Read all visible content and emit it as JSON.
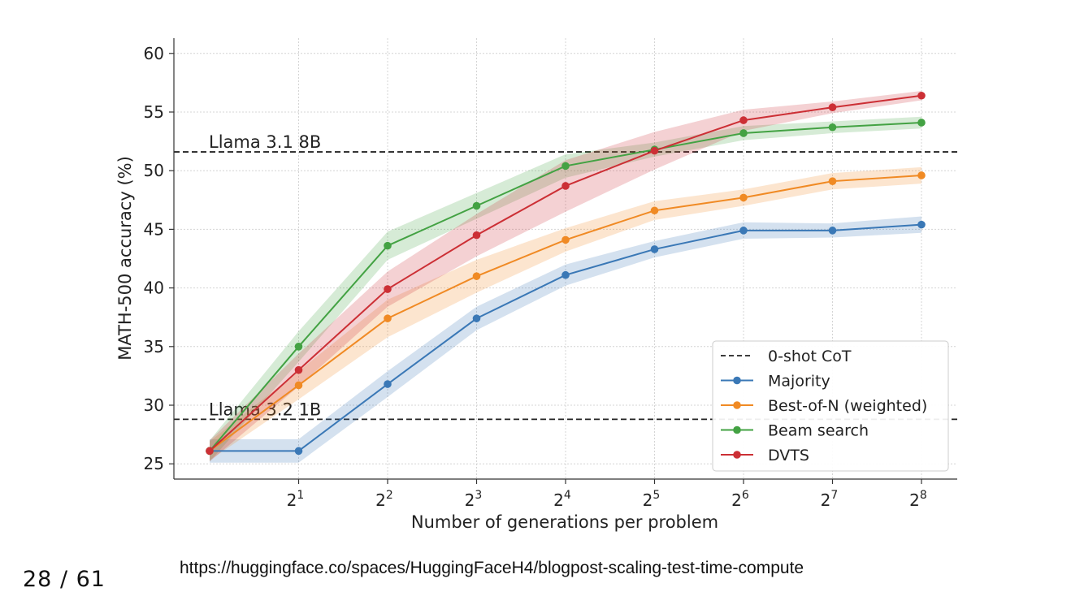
{
  "slide": {
    "page_number": "28 / 61",
    "source_url": "https://huggingface.co/spaces/HuggingFaceH4/blogpost-scaling-test-time-compute"
  },
  "chart_data": {
    "type": "line",
    "title": "",
    "xlabel": "Number of generations per problem",
    "ylabel": "MATH-500 accuracy (%)",
    "x": [
      1,
      2,
      4,
      8,
      16,
      32,
      64,
      128,
      256
    ],
    "x_scale": "log2",
    "x_ticks": [
      2,
      4,
      8,
      16,
      32,
      64,
      128,
      256
    ],
    "x_tick_labels": [
      {
        "base": "2",
        "exp": "1"
      },
      {
        "base": "2",
        "exp": "2"
      },
      {
        "base": "2",
        "exp": "3"
      },
      {
        "base": "2",
        "exp": "4"
      },
      {
        "base": "2",
        "exp": "5"
      },
      {
        "base": "2",
        "exp": "6"
      },
      {
        "base": "2",
        "exp": "7"
      },
      {
        "base": "2",
        "exp": "8"
      }
    ],
    "y_ticks": [
      25,
      30,
      35,
      40,
      45,
      50,
      55,
      60
    ],
    "ylim": [
      23.7,
      61.3
    ],
    "grid": true,
    "legend_position": "bottom-right",
    "reference_lines": [
      {
        "name": "0-shot CoT",
        "label": "Llama 3.1 8B",
        "y": 51.6,
        "color": "#222222"
      },
      {
        "name": "0-shot CoT",
        "label": "Llama 3.2 1B",
        "y": 28.8,
        "color": "#222222"
      }
    ],
    "series": [
      {
        "name": "Majority",
        "color": "#3a78b6",
        "values": [
          26.1,
          26.1,
          31.8,
          37.4,
          41.1,
          43.3,
          44.9,
          44.9,
          45.4
        ],
        "band": [
          1.0,
          1.0,
          1.1,
          1.0,
          0.9,
          0.7,
          0.7,
          0.6,
          0.7
        ]
      },
      {
        "name": "Best-of-N (weighted)",
        "color": "#f08a24",
        "values": [
          26.1,
          31.7,
          37.4,
          41.0,
          44.1,
          46.6,
          47.7,
          49.1,
          49.6
        ],
        "band": [
          0.8,
          1.2,
          1.6,
          1.4,
          1.0,
          0.8,
          0.7,
          0.7,
          0.7
        ]
      },
      {
        "name": "Beam search",
        "color": "#43a243",
        "values": [
          26.1,
          35.0,
          43.6,
          47.0,
          50.4,
          51.8,
          53.2,
          53.7,
          54.1
        ],
        "band": [
          0.9,
          1.3,
          1.2,
          1.1,
          1.0,
          0.6,
          0.6,
          0.5,
          0.5
        ]
      },
      {
        "name": "DVTS",
        "color": "#cc2f35",
        "values": [
          26.1,
          33.0,
          39.9,
          44.5,
          48.7,
          51.7,
          54.3,
          55.4,
          56.4
        ],
        "band": [
          0.9,
          1.4,
          1.5,
          1.8,
          2.2,
          1.6,
          0.9,
          0.5,
          0.4
        ]
      }
    ]
  }
}
